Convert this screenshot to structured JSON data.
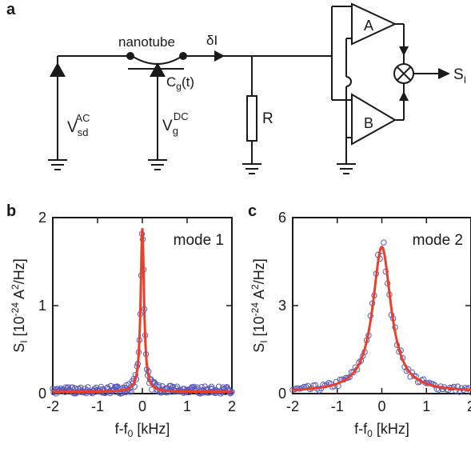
{
  "panel_a": {
    "label": "a",
    "nanotube": "nanotube",
    "delta_i": "δI",
    "vsd": {
      "base": "V",
      "sub": "sd",
      "sup": "AC"
    },
    "vg": {
      "base": "V",
      "sub": "g",
      "sup": "DC"
    },
    "cg": {
      "base": "C",
      "sub": "g",
      "tail": "(t)"
    },
    "r": "R",
    "amp_a": "A",
    "amp_b": "B",
    "output": {
      "base": "S",
      "sub": "I"
    }
  },
  "chart_data": [
    {
      "type": "scatter",
      "panel": "b",
      "annotation": "mode 1",
      "xlabel": "f-f0 [kHz]",
      "ylabel": "SI [10-24 A2/Hz]",
      "xlim": [
        -2,
        2
      ],
      "ylim": [
        0,
        2
      ],
      "xticks": [
        "-2",
        "-1",
        "0",
        "1",
        "2"
      ],
      "yticks": [
        "0",
        "1",
        "2"
      ],
      "fit": {
        "center": 0,
        "amplitude": 1.86,
        "halfwidth": 0.045,
        "baseline": 0.02
      },
      "scatter_noise": 0.06
    },
    {
      "type": "scatter",
      "panel": "c",
      "annotation": "mode 2",
      "xlabel": "f-f0 [kHz]",
      "ylabel": "SI [10-24 A2/Hz]",
      "xlim": [
        -2,
        2
      ],
      "ylim": [
        0,
        6
      ],
      "xticks": [
        "-2",
        "-1",
        "0",
        "1",
        "2"
      ],
      "yticks": [
        "0",
        "3",
        "6"
      ],
      "fit": {
        "center": 0,
        "amplitude": 4.95,
        "halfwidth": 0.25,
        "baseline": 0.05
      },
      "scatter_noise": 0.25
    }
  ],
  "colors": {
    "fit": "#e8402a",
    "points": "#5a5ab8",
    "ink": "#1a1a1a"
  }
}
